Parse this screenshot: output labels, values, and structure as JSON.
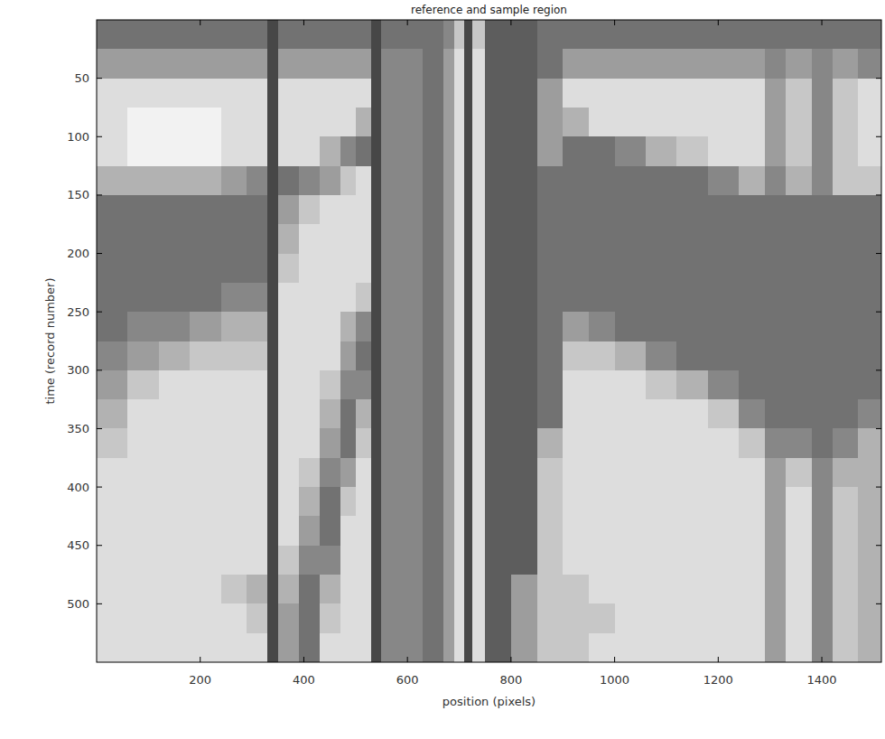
{
  "chart_data": {
    "type": "heatmap",
    "title": "reference and sample region",
    "x_label": "position (pixels)",
    "y_label": "time (record number)",
    "xlim": [
      0,
      1515
    ],
    "ylim": [
      550,
      0
    ],
    "xticks": [
      200,
      400,
      600,
      800,
      1000,
      1200,
      1400
    ],
    "yticks": [
      50,
      100,
      150,
      200,
      250,
      300,
      350,
      400,
      450,
      500
    ],
    "zlim": [
      0,
      9
    ],
    "x_edges": [
      0,
      60,
      120,
      180,
      240,
      290,
      330,
      350,
      390,
      430,
      470,
      500,
      530,
      550,
      590,
      630,
      670,
      690,
      710,
      725,
      750,
      800,
      850,
      900,
      950,
      1000,
      1060,
      1120,
      1180,
      1240,
      1290,
      1330,
      1380,
      1420,
      1470,
      1515
    ],
    "y_edges": [
      0,
      25,
      50,
      75,
      100,
      125,
      150,
      175,
      200,
      225,
      250,
      275,
      300,
      325,
      350,
      375,
      400,
      425,
      450,
      475,
      500,
      525,
      550
    ],
    "cells": [
      [
        3,
        3,
        3,
        3,
        3,
        3,
        1,
        3,
        3,
        3,
        3,
        3,
        1,
        3,
        3,
        3,
        4,
        7,
        1,
        7,
        2,
        2,
        3,
        3,
        3,
        3,
        3,
        3,
        3,
        3,
        3,
        3,
        3,
        3,
        3
      ],
      [
        5,
        5,
        5,
        5,
        5,
        5,
        1,
        5,
        5,
        5,
        5,
        5,
        1,
        4,
        4,
        3,
        5,
        8,
        1,
        8,
        2,
        2,
        3,
        5,
        5,
        5,
        5,
        5,
        5,
        5,
        4,
        5,
        4,
        5,
        4
      ],
      [
        8,
        8,
        8,
        8,
        8,
        8,
        1,
        8,
        8,
        8,
        8,
        8,
        1,
        4,
        4,
        3,
        5,
        8,
        1,
        8,
        2,
        2,
        5,
        8,
        8,
        8,
        8,
        8,
        8,
        8,
        5,
        7,
        4,
        7,
        8
      ],
      [
        8,
        9,
        9,
        9,
        8,
        8,
        1,
        8,
        8,
        8,
        8,
        6,
        1,
        4,
        4,
        3,
        5,
        8,
        1,
        8,
        2,
        2,
        5,
        6,
        8,
        8,
        8,
        8,
        8,
        8,
        5,
        7,
        4,
        7,
        8
      ],
      [
        8,
        9,
        9,
        9,
        8,
        8,
        1,
        8,
        8,
        6,
        4,
        3,
        1,
        4,
        4,
        3,
        5,
        8,
        1,
        8,
        2,
        2,
        5,
        3,
        3,
        4,
        6,
        7,
        8,
        8,
        5,
        7,
        4,
        7,
        8
      ],
      [
        6,
        6,
        6,
        6,
        5,
        4,
        1,
        3,
        4,
        5,
        7,
        8,
        1,
        4,
        4,
        3,
        5,
        8,
        1,
        8,
        2,
        2,
        3,
        3,
        3,
        3,
        3,
        3,
        4,
        6,
        4,
        6,
        4,
        7,
        7
      ],
      [
        3,
        3,
        3,
        3,
        3,
        3,
        1,
        5,
        7,
        8,
        8,
        8,
        1,
        4,
        4,
        3,
        5,
        8,
        1,
        8,
        2,
        2,
        3,
        3,
        3,
        3,
        3,
        3,
        3,
        3,
        3,
        3,
        3,
        3,
        3
      ],
      [
        3,
        3,
        3,
        3,
        3,
        3,
        1,
        6,
        8,
        8,
        8,
        8,
        1,
        4,
        4,
        3,
        5,
        8,
        1,
        8,
        2,
        2,
        3,
        3,
        3,
        3,
        3,
        3,
        3,
        3,
        3,
        3,
        3,
        3,
        3
      ],
      [
        3,
        3,
        3,
        3,
        3,
        3,
        1,
        7,
        8,
        8,
        8,
        8,
        1,
        4,
        4,
        3,
        5,
        8,
        1,
        8,
        2,
        2,
        3,
        3,
        3,
        3,
        3,
        3,
        3,
        3,
        3,
        3,
        3,
        3,
        3
      ],
      [
        3,
        3,
        3,
        3,
        4,
        4,
        1,
        8,
        8,
        8,
        8,
        7,
        1,
        4,
        4,
        3,
        5,
        8,
        1,
        8,
        2,
        2,
        3,
        3,
        3,
        3,
        3,
        3,
        3,
        3,
        3,
        3,
        3,
        3,
        3
      ],
      [
        3,
        4,
        4,
        5,
        6,
        6,
        1,
        8,
        8,
        8,
        6,
        4,
        1,
        4,
        4,
        3,
        5,
        8,
        1,
        8,
        2,
        2,
        3,
        5,
        4,
        3,
        3,
        3,
        3,
        3,
        3,
        3,
        3,
        3,
        3
      ],
      [
        4,
        5,
        6,
        7,
        7,
        7,
        1,
        8,
        8,
        8,
        5,
        3,
        1,
        4,
        4,
        3,
        5,
        8,
        1,
        8,
        2,
        2,
        3,
        7,
        7,
        6,
        4,
        3,
        3,
        3,
        3,
        3,
        3,
        3,
        3
      ],
      [
        5,
        7,
        8,
        8,
        8,
        8,
        1,
        8,
        8,
        7,
        4,
        4,
        1,
        4,
        4,
        3,
        5,
        8,
        1,
        8,
        2,
        2,
        3,
        8,
        8,
        8,
        7,
        6,
        4,
        3,
        3,
        3,
        3,
        3,
        3
      ],
      [
        6,
        8,
        8,
        8,
        8,
        8,
        1,
        8,
        8,
        6,
        3,
        6,
        1,
        4,
        4,
        3,
        5,
        8,
        1,
        8,
        2,
        2,
        3,
        8,
        8,
        8,
        8,
        8,
        7,
        4,
        3,
        3,
        3,
        3,
        4
      ],
      [
        7,
        8,
        8,
        8,
        8,
        8,
        1,
        8,
        8,
        5,
        3,
        7,
        1,
        4,
        4,
        3,
        5,
        8,
        1,
        8,
        2,
        2,
        6,
        8,
        8,
        8,
        8,
        8,
        8,
        7,
        4,
        4,
        3,
        4,
        6
      ],
      [
        8,
        8,
        8,
        8,
        8,
        8,
        1,
        8,
        7,
        4,
        5,
        8,
        1,
        4,
        4,
        3,
        5,
        8,
        1,
        8,
        2,
        2,
        7,
        8,
        8,
        8,
        8,
        8,
        8,
        8,
        5,
        7,
        4,
        6,
        6
      ],
      [
        8,
        8,
        8,
        8,
        8,
        8,
        1,
        8,
        6,
        3,
        7,
        8,
        1,
        4,
        4,
        3,
        5,
        8,
        1,
        8,
        2,
        2,
        7,
        8,
        8,
        8,
        8,
        8,
        8,
        8,
        5,
        8,
        4,
        7,
        6
      ],
      [
        8,
        8,
        8,
        8,
        8,
        8,
        1,
        8,
        5,
        3,
        8,
        8,
        1,
        4,
        4,
        3,
        5,
        8,
        1,
        8,
        2,
        2,
        7,
        8,
        8,
        8,
        8,
        8,
        8,
        8,
        5,
        8,
        4,
        7,
        6
      ],
      [
        8,
        8,
        8,
        8,
        8,
        8,
        1,
        7,
        4,
        4,
        8,
        8,
        1,
        4,
        4,
        3,
        5,
        8,
        1,
        8,
        2,
        2,
        7,
        8,
        8,
        8,
        8,
        8,
        8,
        8,
        5,
        8,
        4,
        7,
        6
      ],
      [
        8,
        8,
        8,
        8,
        7,
        6,
        1,
        6,
        3,
        6,
        8,
        8,
        1,
        4,
        4,
        3,
        5,
        8,
        1,
        8,
        2,
        5,
        7,
        7,
        8,
        8,
        8,
        8,
        8,
        8,
        5,
        8,
        4,
        7,
        6
      ],
      [
        8,
        8,
        8,
        8,
        8,
        7,
        1,
        5,
        3,
        7,
        8,
        8,
        1,
        4,
        4,
        3,
        5,
        8,
        1,
        8,
        2,
        5,
        7,
        7,
        7,
        8,
        8,
        8,
        8,
        8,
        5,
        8,
        4,
        7,
        6
      ],
      [
        8,
        8,
        8,
        8,
        8,
        8,
        1,
        5,
        3,
        8,
        8,
        8,
        1,
        4,
        4,
        3,
        5,
        8,
        1,
        8,
        2,
        5,
        7,
        7,
        8,
        8,
        8,
        8,
        8,
        8,
        5,
        8,
        4,
        7,
        6
      ]
    ]
  }
}
